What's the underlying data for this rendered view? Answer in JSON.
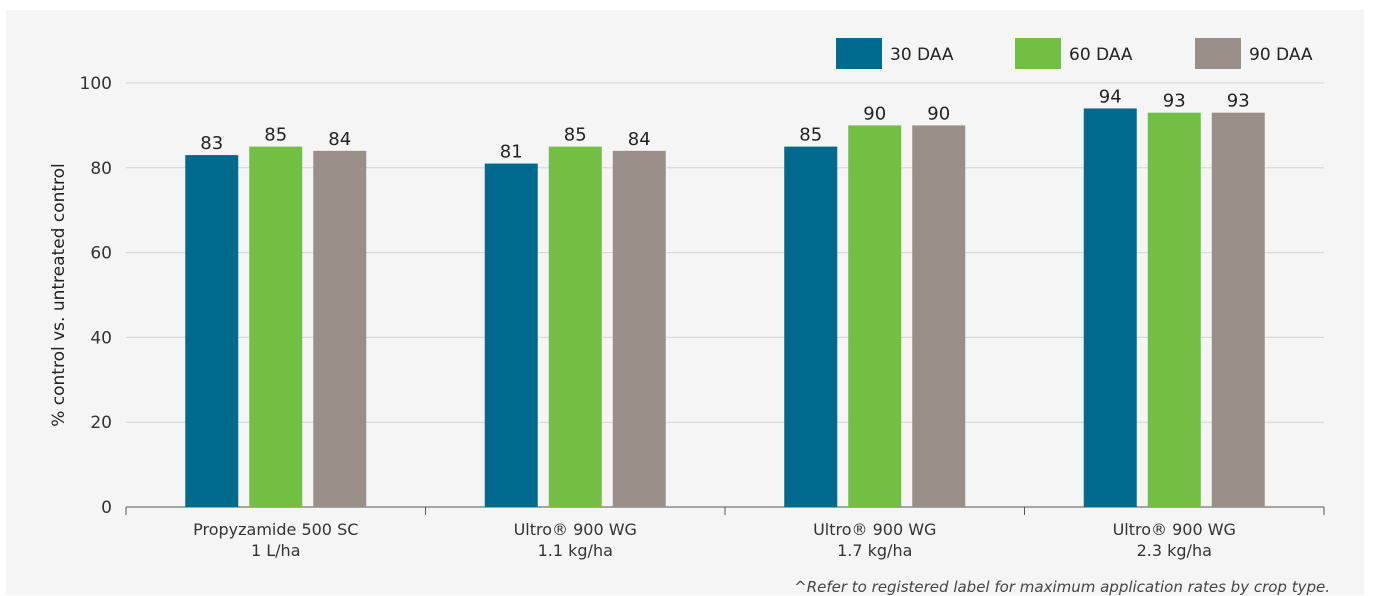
{
  "chart_data": {
    "type": "bar",
    "title": "",
    "xlabel": "",
    "ylabel": "% control vs. untreated control",
    "ylim": [
      0,
      100
    ],
    "yticks": [
      0,
      20,
      40,
      60,
      80,
      100
    ],
    "grid": true,
    "legend_position": "top-right",
    "categories": [
      [
        "Propyzamide 500 SC",
        "1 L/ha"
      ],
      [
        "Ultro® 900 WG",
        "1.1 kg/ha"
      ],
      [
        "Ultro® 900 WG",
        "1.7 kg/ha"
      ],
      [
        "Ultro® 900 WG",
        "2.3 kg/ha"
      ]
    ],
    "series": [
      {
        "name": "30 DAA",
        "color": "#006a8e",
        "values": [
          83,
          81,
          85,
          94
        ]
      },
      {
        "name": "60 DAA",
        "color": "#72bf44",
        "values": [
          85,
          85,
          90,
          93
        ]
      },
      {
        "name": "90 DAA",
        "color": "#9a8f88",
        "values": [
          84,
          84,
          90,
          93
        ]
      }
    ]
  },
  "footnote": "^Refer to registered label for maximum application rates by crop type."
}
